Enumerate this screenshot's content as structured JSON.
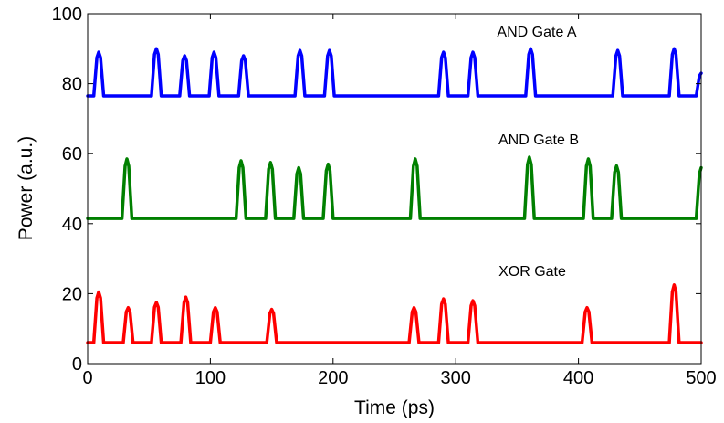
{
  "chart_data": {
    "type": "line",
    "title": "",
    "xlabel": "Time (ps)",
    "ylabel": "Power (a.u.)",
    "xlim": [
      0,
      500
    ],
    "ylim": [
      0,
      100
    ],
    "xticks": [
      0,
      100,
      200,
      300,
      400,
      500
    ],
    "yticks": [
      0,
      20,
      40,
      60,
      80,
      100
    ],
    "grid": false,
    "legend": "none",
    "series": [
      {
        "name": "AND Gate A",
        "color": "#0000ff",
        "baseline": 76.5,
        "peaks": [
          [
            9,
            89
          ],
          [
            56,
            90
          ],
          [
            79,
            88
          ],
          [
            103,
            89
          ],
          [
            127,
            88
          ],
          [
            173,
            89.5
          ],
          [
            197,
            89.5
          ],
          [
            290,
            89
          ],
          [
            314,
            89
          ],
          [
            361,
            90
          ],
          [
            432,
            89.5
          ],
          [
            478,
            90
          ],
          [
            500,
            83
          ]
        ]
      },
      {
        "name": "AND Gate B",
        "color": "#008000",
        "baseline": 41.5,
        "peaks": [
          [
            32,
            58.5
          ],
          [
            125,
            58
          ],
          [
            149,
            57.5
          ],
          [
            172,
            56
          ],
          [
            196,
            57
          ],
          [
            267,
            58.5
          ],
          [
            360,
            59
          ],
          [
            408,
            58.5
          ],
          [
            431,
            56.5
          ],
          [
            500,
            56
          ]
        ]
      },
      {
        "name": "XOR Gate",
        "color": "#ff0000",
        "baseline": 6,
        "peaks": [
          [
            9,
            20.5
          ],
          [
            33,
            16
          ],
          [
            56,
            17.5
          ],
          [
            80,
            19
          ],
          [
            104,
            16
          ],
          [
            150,
            15.5
          ],
          [
            266,
            16
          ],
          [
            290,
            18.5
          ],
          [
            314,
            18
          ],
          [
            407,
            16
          ],
          [
            478,
            22.5
          ]
        ]
      }
    ]
  }
}
